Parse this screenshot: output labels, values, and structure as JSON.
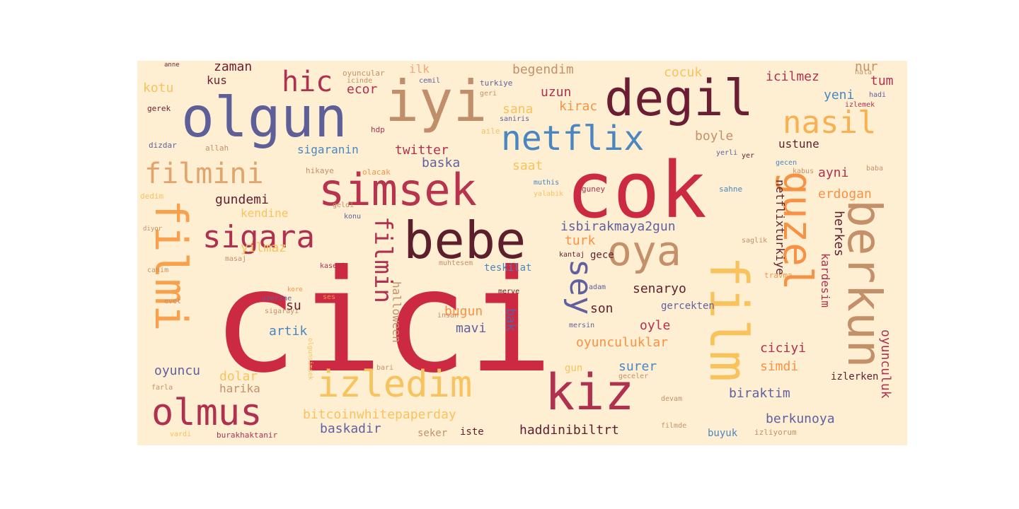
{
  "colors": {
    "background": "#feefd3",
    "crimson": "#cc2a42",
    "wine": "#6e1e33",
    "raspberry": "#b0304f",
    "slate": "#5c5f9a",
    "tan": "#c4906a",
    "sky": "#4a8ac4",
    "gold": "#f8c05a",
    "orange": "#f79245"
  },
  "words": [
    {
      "text": "cici",
      "color": "#cc2a42"
    },
    {
      "text": "cok",
      "color": "#cc2a42"
    },
    {
      "text": "bebe",
      "color": "#5e1f2c"
    },
    {
      "text": "simsek",
      "color": "#b7334e"
    },
    {
      "text": "iyi",
      "color": "#c08e6a"
    },
    {
      "text": "degil",
      "color": "#6a1d33"
    },
    {
      "text": "olgun",
      "color": "#5e5e98"
    },
    {
      "text": "netflix",
      "color": "#4a86c0"
    },
    {
      "text": "film",
      "color": "#f8c25c"
    },
    {
      "text": "guzel",
      "color": "#f79245"
    },
    {
      "text": "berkun",
      "color": "#c4906a"
    },
    {
      "text": "filmi",
      "color": "#f9a04c"
    },
    {
      "text": "izledim",
      "color": "#f8c25c"
    },
    {
      "text": "kiz",
      "color": "#b0304f"
    },
    {
      "text": "olmus",
      "color": "#b0304f"
    },
    {
      "text": "sigara",
      "color": "#b0304f"
    },
    {
      "text": "oya",
      "color": "#c4906a"
    },
    {
      "text": "filmini",
      "color": "#e2a46c"
    },
    {
      "text": "hic",
      "color": "#b0304f"
    },
    {
      "text": "filmin",
      "color": "#b0304f"
    },
    {
      "text": "sey",
      "color": "#6060a0"
    },
    {
      "text": "nasil",
      "color": "#f8b050"
    },
    {
      "text": "kotu",
      "color": "#f8c25c"
    },
    {
      "text": "zaman",
      "color": "#6e1e33"
    },
    {
      "text": "kus",
      "color": "#6e1e33"
    },
    {
      "text": "ecor",
      "color": "#b0304f"
    },
    {
      "text": "ilk",
      "color": "#f0a87a"
    },
    {
      "text": "begendim",
      "color": "#c4906a"
    },
    {
      "text": "cocuk",
      "color": "#f8c25c"
    },
    {
      "text": "icilmez",
      "color": "#b0304f"
    },
    {
      "text": "nur",
      "color": "#c4906a"
    },
    {
      "text": "tum",
      "color": "#b0304f"
    },
    {
      "text": "uzun",
      "color": "#b0304f"
    },
    {
      "text": "sana",
      "color": "#f8c25c"
    },
    {
      "text": "kirac",
      "color": "#f79245"
    },
    {
      "text": "yeni",
      "color": "#4a86c0"
    },
    {
      "text": "boyle",
      "color": "#c4906a"
    },
    {
      "text": "ustune",
      "color": "#5e1f2c"
    },
    {
      "text": "sigaranin",
      "color": "#4a86c0"
    },
    {
      "text": "twitter",
      "color": "#b0304f"
    },
    {
      "text": "baska",
      "color": "#6060a0"
    },
    {
      "text": "saat",
      "color": "#f8c25c"
    },
    {
      "text": "ayni",
      "color": "#b0304f"
    },
    {
      "text": "erdogan",
      "color": "#f79245"
    },
    {
      "text": "gundemi",
      "color": "#5e1f2c"
    },
    {
      "text": "kendine",
      "color": "#f8c25c"
    },
    {
      "text": "isbirakmaya2gun",
      "color": "#6060a0"
    },
    {
      "text": "turk",
      "color": "#f79245"
    },
    {
      "text": "yilmaz",
      "color": "#f8c25c"
    },
    {
      "text": "netflixturkiye",
      "color": "#5e1f2c"
    },
    {
      "text": "herkes",
      "color": "#5e1f2c"
    },
    {
      "text": "kardesim",
      "color": "#b0304f"
    },
    {
      "text": "halloween",
      "color": "#c4906a"
    },
    {
      "text": "teskilat",
      "color": "#4a86c0"
    },
    {
      "text": "gece",
      "color": "#5e1f2c"
    },
    {
      "text": "senaryo",
      "color": "#5e1f2c"
    },
    {
      "text": "son",
      "color": "#5e1f2c"
    },
    {
      "text": "gercekten",
      "color": "#6060a0"
    },
    {
      "text": "su",
      "color": "#5e1f2c"
    },
    {
      "text": "artik",
      "color": "#4a86c0"
    },
    {
      "text": "bugun",
      "color": "#f79245"
    },
    {
      "text": "mavi",
      "color": "#6060a0"
    },
    {
      "text": "bak",
      "color": "#6060a0"
    },
    {
      "text": "oyle",
      "color": "#b0304f"
    },
    {
      "text": "oyunculuklar",
      "color": "#f79245"
    },
    {
      "text": "ciciyi",
      "color": "#b0304f"
    },
    {
      "text": "oyunculuk",
      "color": "#b0304f"
    },
    {
      "text": "oyuncu",
      "color": "#6060a0"
    },
    {
      "text": "surer",
      "color": "#4a86c0"
    },
    {
      "text": "simdi",
      "color": "#f79245"
    },
    {
      "text": "dolar",
      "color": "#f8c25c"
    },
    {
      "text": "harika",
      "color": "#c4906a"
    },
    {
      "text": "gun",
      "color": "#f8c25c"
    },
    {
      "text": "izlerken",
      "color": "#5e1f2c"
    },
    {
      "text": "biraktim",
      "color": "#6060a0"
    },
    {
      "text": "bitcoinwhitepaperday",
      "color": "#f8c25c"
    },
    {
      "text": "berkunoya",
      "color": "#6060a0"
    },
    {
      "text": "baskadir",
      "color": "#6060a0"
    },
    {
      "text": "seker",
      "color": "#c4906a"
    },
    {
      "text": "iste",
      "color": "#5e1f2c"
    },
    {
      "text": "haddinibiltrt",
      "color": "#5e1f2c"
    },
    {
      "text": "buyuk",
      "color": "#4a86c0"
    },
    {
      "text": "burakhaktanir",
      "color": "#b0304f"
    },
    {
      "text": "oyuncular",
      "color": "#c4906a"
    },
    {
      "text": "cemil",
      "color": "#6060a0"
    },
    {
      "text": "turkiye",
      "color": "#6060a0"
    },
    {
      "text": "izlemek",
      "color": "#b0304f"
    },
    {
      "text": "hala",
      "color": "#c4906a"
    },
    {
      "text": "hadi",
      "color": "#6060a0"
    },
    {
      "text": "icinde",
      "color": "#c4906a"
    },
    {
      "text": "gerek",
      "color": "#6e1e33"
    },
    {
      "text": "allah",
      "color": "#c4906a"
    },
    {
      "text": "dizdar",
      "color": "#6060a0"
    },
    {
      "text": "hikaye",
      "color": "#c4906a"
    },
    {
      "text": "olacak",
      "color": "#f79245"
    },
    {
      "text": "aile",
      "color": "#f8c25c"
    },
    {
      "text": "hdp",
      "color": "#b0304f"
    },
    {
      "text": "saniris",
      "color": "#6060a0"
    },
    {
      "text": "geri",
      "color": "#c4906a"
    },
    {
      "text": "gecen",
      "color": "#4a86c0"
    },
    {
      "text": "yer",
      "color": "#5e1f2c"
    },
    {
      "text": "yerli",
      "color": "#6060a0"
    },
    {
      "text": "kabus",
      "color": "#c4906a"
    },
    {
      "text": "baba",
      "color": "#c4906a"
    },
    {
      "text": "muthis",
      "color": "#4a86c0"
    },
    {
      "text": "yalabik",
      "color": "#f8c25c"
    },
    {
      "text": "guney",
      "color": "#b0304f"
    },
    {
      "text": "sahne",
      "color": "#4a86c0"
    },
    {
      "text": "dedim",
      "color": "#f8c25c"
    },
    {
      "text": "konu",
      "color": "#6060a0"
    },
    {
      "text": "geldi",
      "color": "#c4906a"
    },
    {
      "text": "saglik",
      "color": "#c4906a"
    },
    {
      "text": "kantaj",
      "color": "#5e1f2c"
    },
    {
      "text": "muhtesem",
      "color": "#c4906a"
    },
    {
      "text": "kaseti",
      "color": "#b0304f"
    },
    {
      "text": "travma",
      "color": "#f79245"
    },
    {
      "text": "adam",
      "color": "#6060a0"
    },
    {
      "text": "merve",
      "color": "#5e1f2c"
    },
    {
      "text": "masaj",
      "color": "#c4906a"
    },
    {
      "text": "canim",
      "color": "#c4906a"
    },
    {
      "text": "uzerine",
      "color": "#6060a0"
    },
    {
      "text": "ses",
      "color": "#f79245"
    },
    {
      "text": "evet",
      "color": "#c4906a"
    },
    {
      "text": "sigarayi",
      "color": "#c4906a"
    },
    {
      "text": "insan",
      "color": "#c4906a"
    },
    {
      "text": "mersin",
      "color": "#6060a0"
    },
    {
      "text": "bari",
      "color": "#c4906a"
    },
    {
      "text": "farla",
      "color": "#c4906a"
    },
    {
      "text": "devam",
      "color": "#c4906a"
    },
    {
      "text": "filmde",
      "color": "#c4906a"
    },
    {
      "text": "izliyorum",
      "color": "#c4906a"
    },
    {
      "text": "vardi",
      "color": "#f8c25c"
    },
    {
      "text": "anne",
      "color": "#6e1e33"
    },
    {
      "text": "geceler",
      "color": "#c4906a"
    },
    {
      "text": "diyor",
      "color": "#c4906a"
    },
    {
      "text": "kore",
      "color": "#f79245"
    },
    {
      "text": "olgunsimsek",
      "color": "#f8c25c"
    }
  ]
}
